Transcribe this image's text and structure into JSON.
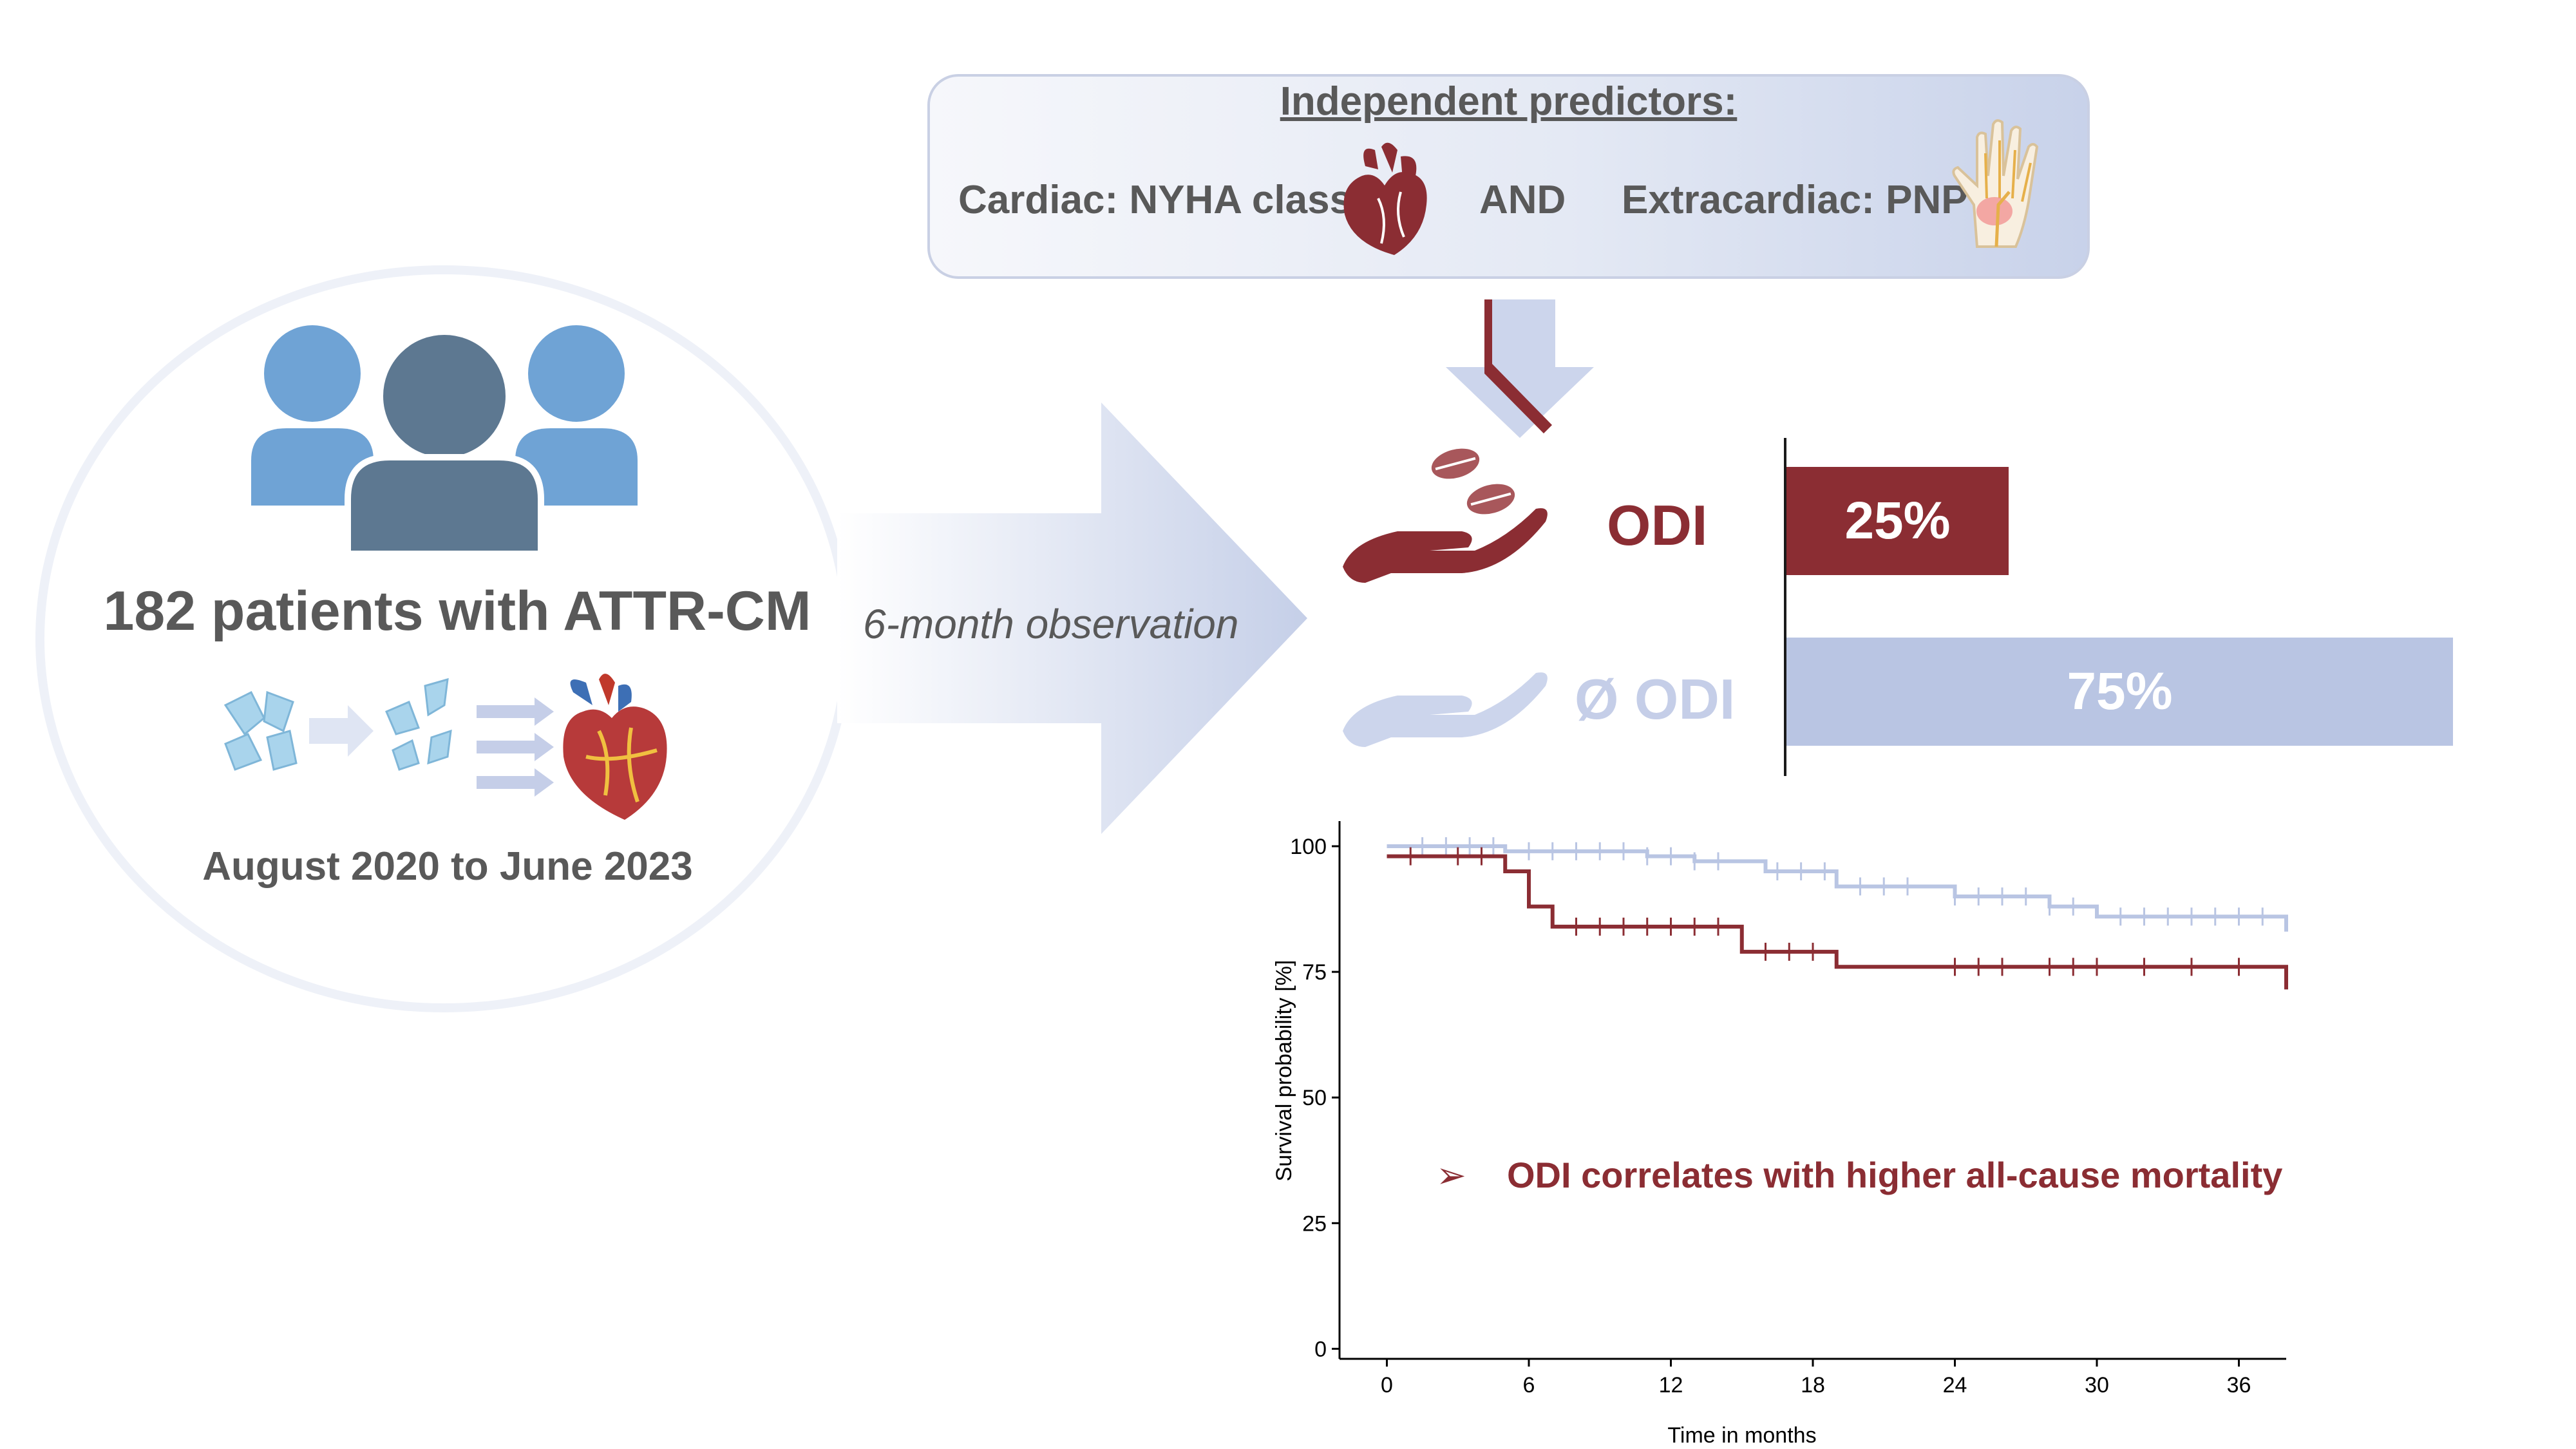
{
  "study": {
    "patient_count": "182 patients with ATTR-CM",
    "period": "August 2020 to June 2023",
    "observation": "6-month observation"
  },
  "predictors": {
    "title": "Independent predictors:",
    "cardiac": "Cardiac: NYHA class",
    "connector": "AND",
    "extracardiac": "Extracardiac: PNP"
  },
  "groups": {
    "odi_label": "ODI",
    "no_odi_label": "Ø ODI",
    "odi_share": "25%",
    "no_odi_share": "75%",
    "odi_fraction": 0.25,
    "no_odi_fraction": 0.75
  },
  "conclusion": "ODI correlates with higher all-cause mortality",
  "icons": [
    "people-icon",
    "amyloid-fibril-icon",
    "heart-icon",
    "hand-nerve-icon",
    "pills-in-hand-icon",
    "empty-hand-icon"
  ],
  "colors": {
    "odi": "#8b2d33",
    "no_odi": "#b9c5e3",
    "text": "#595959"
  },
  "chart_data": {
    "type": "line",
    "step": true,
    "xlabel": "Time in months",
    "ylabel": "Survival probability [%]",
    "xlim": [
      -2,
      38
    ],
    "ylim": [
      -2,
      105
    ],
    "xticks": [
      0,
      6,
      12,
      18,
      24,
      30,
      36
    ],
    "yticks": [
      0,
      25,
      50,
      75,
      100
    ],
    "grid": false,
    "series": [
      {
        "color": "#b9c5e3",
        "x": [
          0,
          4,
          5,
          11,
          13,
          16,
          19,
          24,
          28,
          30,
          38
        ],
        "y": [
          100,
          100,
          99,
          98,
          97,
          95,
          92,
          90,
          88,
          86,
          83
        ],
        "censor_x": [
          1.5,
          2.5,
          3.5,
          4.5,
          6,
          7,
          8,
          9,
          10,
          11,
          12,
          13,
          14,
          16.5,
          17.5,
          18.5,
          20,
          21,
          22,
          24,
          25,
          26,
          27,
          28,
          29,
          31,
          32,
          33,
          34,
          35,
          36,
          37
        ]
      },
      {
        "color": "#8b2d33",
        "x": [
          0,
          4,
          5,
          6,
          7,
          15,
          19,
          38
        ],
        "y": [
          98,
          98,
          95,
          88,
          84,
          79,
          76,
          71.5
        ],
        "censor_x": [
          1,
          3,
          4,
          8,
          9,
          10,
          11,
          12,
          13,
          14,
          16,
          17,
          18,
          24,
          25,
          26,
          28,
          29,
          30,
          32,
          34,
          36
        ]
      }
    ]
  }
}
